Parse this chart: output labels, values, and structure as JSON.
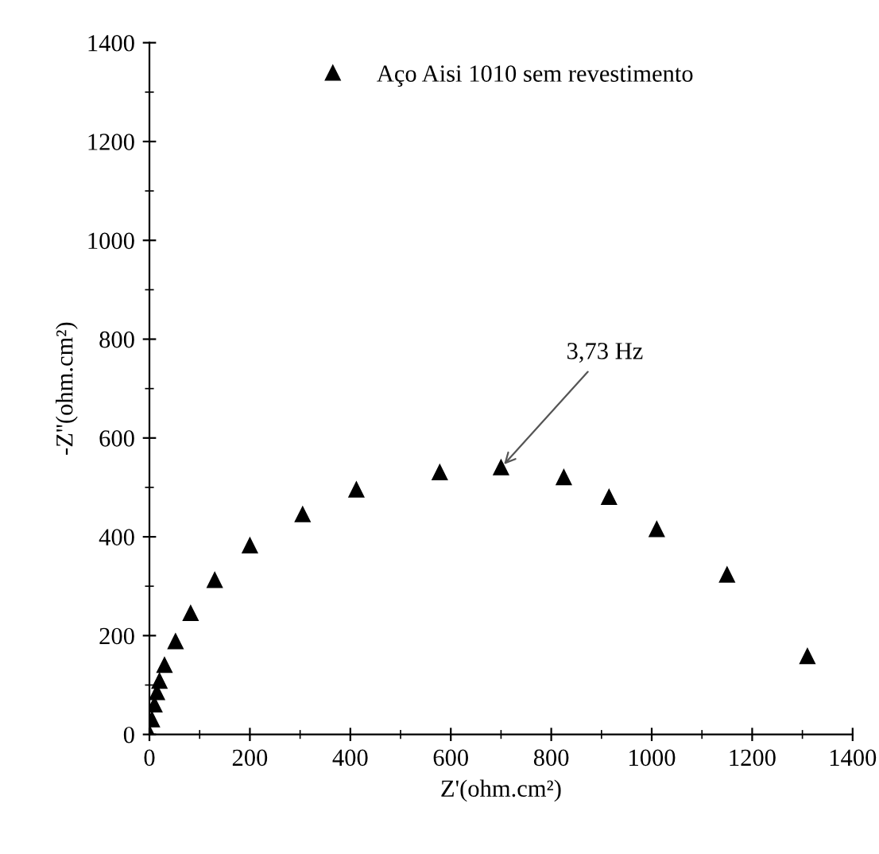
{
  "chart_data": {
    "type": "scatter",
    "xlabel": "Z'(ohm.cm²)",
    "ylabel": "-Z''(ohm.cm²)",
    "xlim": [
      0,
      1400
    ],
    "ylim": [
      0,
      1400
    ],
    "xticks": [
      0,
      200,
      400,
      600,
      800,
      1000,
      1200,
      1400
    ],
    "yticks": [
      0,
      200,
      400,
      600,
      800,
      1000,
      1200,
      1400
    ],
    "marker": "triangle",
    "legend": "top",
    "grid": false,
    "series": [
      {
        "name": "Aço Aisi 1010 sem revestimento",
        "color": "#000000",
        "x": [
          1,
          5,
          10,
          15,
          20,
          30,
          52,
          82,
          130,
          200,
          305,
          412,
          578,
          700,
          825,
          915,
          1010,
          1150,
          1310
        ],
        "values": [
          0,
          30,
          60,
          85,
          108,
          140,
          188,
          245,
          312,
          382,
          445,
          495,
          530,
          540,
          520,
          480,
          415,
          323,
          158
        ]
      }
    ],
    "annotations": [
      {
        "text": "3,73 Hz",
        "x": 700,
        "y": 540
      }
    ]
  }
}
